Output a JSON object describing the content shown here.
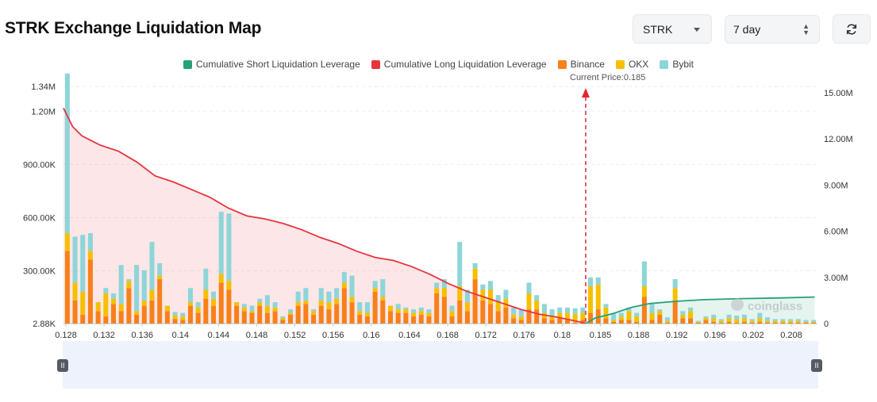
{
  "page": {
    "title": "STRK Exchange Liquidation Map",
    "coin_select": {
      "value": "STRK"
    },
    "range_select": {
      "value": "7 day"
    },
    "refresh_icon": "refresh-icon",
    "watermark": "coinglass"
  },
  "chart_data": {
    "type": "bar",
    "title": "",
    "current_price_label": "Current Price:0.185",
    "current_price": 0.185,
    "x_tick_labels": [
      "0.128",
      "0.132",
      "0.136",
      "0.14",
      "0.144",
      "0.148",
      "0.152",
      "0.156",
      "0.16",
      "0.164",
      "0.168",
      "0.172",
      "0.176",
      "0.18",
      "0.185",
      "0.188",
      "0.192",
      "0.196",
      "0.202",
      "0.208"
    ],
    "left_axis": {
      "ticks": [
        "2.88K",
        "300.00K",
        "600.00K",
        "900.00K",
        "1.20M",
        "1.34M"
      ],
      "ylim": [
        2880,
        1340000
      ]
    },
    "right_axis": {
      "ticks": [
        "0",
        "3.00M",
        "6.00M",
        "9.00M",
        "12.00M",
        "15.00M"
      ],
      "ylim": [
        0,
        15000000
      ]
    },
    "legend": [
      {
        "name": "Cumulative Short Liquidation Leverage",
        "color": "#26a17b"
      },
      {
        "name": "Cumulative Long Liquidation Leverage",
        "color": "#e8343f"
      },
      {
        "name": "Binance",
        "color": "#f7801a"
      },
      {
        "name": "OKX",
        "color": "#f5c000"
      },
      {
        "name": "Bybit",
        "color": "#8dd5d8"
      }
    ],
    "series": [
      {
        "name": "Binance",
        "values": [
          410000,
          130000,
          50000,
          360000,
          70000,
          40000,
          110000,
          70000,
          200000,
          50000,
          100000,
          130000,
          250000,
          70000,
          25000,
          20000,
          100000,
          60000,
          140000,
          100000,
          230000,
          190000,
          100000,
          70000,
          60000,
          100000,
          60000,
          70000,
          20000,
          50000,
          100000,
          110000,
          50000,
          100000,
          80000,
          110000,
          200000,
          120000,
          50000,
          40000,
          180000,
          130000,
          70000,
          60000,
          60000,
          40000,
          50000,
          40000,
          170000,
          150000,
          40000,
          130000,
          70000,
          250000,
          130000,
          110000,
          70000,
          90000,
          30000,
          20000,
          80000,
          80000,
          30000,
          20000,
          30000,
          20000,
          5000,
          20000,
          60000,
          80000,
          30000,
          10000,
          20000,
          20000,
          10000,
          150000,
          20000,
          50000,
          5000,
          130000,
          30000,
          30000,
          5000,
          20000,
          10000,
          5000,
          10000,
          5000,
          10000,
          5000,
          10000,
          5000,
          5000,
          5000,
          5000,
          5000,
          5000,
          5000
        ]
      },
      {
        "name": "OKX",
        "values": [
          100000,
          100000,
          130000,
          50000,
          50000,
          130000,
          30000,
          40000,
          40000,
          20000,
          30000,
          60000,
          20000,
          30000,
          20000,
          20000,
          20000,
          30000,
          50000,
          40000,
          50000,
          50000,
          20000,
          20000,
          10000,
          20000,
          40000,
          20000,
          10000,
          10000,
          20000,
          20000,
          20000,
          30000,
          40000,
          30000,
          30000,
          30000,
          20000,
          20000,
          20000,
          20000,
          30000,
          20000,
          20000,
          20000,
          20000,
          20000,
          30000,
          50000,
          30000,
          80000,
          50000,
          60000,
          60000,
          80000,
          50000,
          50000,
          20000,
          20000,
          90000,
          50000,
          30000,
          20000,
          30000,
          40000,
          50000,
          40000,
          150000,
          140000,
          60000,
          10000,
          20000,
          50000,
          30000,
          60000,
          40000,
          20000,
          10000,
          70000,
          20000,
          40000,
          5000,
          10000,
          20000,
          10000,
          20000,
          20000,
          20000,
          10000,
          20000,
          10000,
          10000,
          10000,
          10000,
          10000,
          5000,
          5000
        ]
      },
      {
        "name": "Bybit",
        "values": [
          900000,
          260000,
          320000,
          100000,
          0,
          30000,
          30000,
          220000,
          10000,
          260000,
          170000,
          270000,
          70000,
          0,
          20000,
          20000,
          80000,
          30000,
          120000,
          40000,
          350000,
          380000,
          0,
          20000,
          30000,
          20000,
          60000,
          30000,
          10000,
          20000,
          60000,
          70000,
          10000,
          70000,
          60000,
          60000,
          60000,
          120000,
          50000,
          60000,
          40000,
          100000,
          0,
          30000,
          10000,
          20000,
          20000,
          20000,
          30000,
          50000,
          30000,
          250000,
          70000,
          30000,
          30000,
          50000,
          40000,
          50000,
          40000,
          40000,
          60000,
          30000,
          50000,
          40000,
          30000,
          30000,
          30000,
          30000,
          50000,
          40000,
          20000,
          40000,
          20000,
          20000,
          20000,
          140000,
          50000,
          10000,
          20000,
          50000,
          20000,
          20000,
          5000,
          10000,
          20000,
          10000,
          20000,
          20000,
          20000,
          10000,
          30000,
          20000,
          10000,
          10000,
          10000,
          10000,
          10000,
          10000
        ]
      },
      {
        "name": "Cumulative Long Liquidation Leverage",
        "points": [
          [
            0.128,
            14000000
          ],
          [
            0.129,
            12800000
          ],
          [
            0.13,
            12200000
          ],
          [
            0.132,
            11600000
          ],
          [
            0.134,
            11200000
          ],
          [
            0.136,
            10500000
          ],
          [
            0.138,
            9600000
          ],
          [
            0.14,
            9200000
          ],
          [
            0.142,
            8700000
          ],
          [
            0.144,
            8200000
          ],
          [
            0.146,
            7500000
          ],
          [
            0.148,
            7000000
          ],
          [
            0.15,
            6800000
          ],
          [
            0.152,
            6500000
          ],
          [
            0.154,
            6100000
          ],
          [
            0.156,
            5600000
          ],
          [
            0.158,
            5200000
          ],
          [
            0.16,
            4700000
          ],
          [
            0.162,
            4300000
          ],
          [
            0.164,
            4100000
          ],
          [
            0.166,
            3700000
          ],
          [
            0.168,
            3200000
          ],
          [
            0.17,
            2600000
          ],
          [
            0.172,
            2100000
          ],
          [
            0.174,
            1700000
          ],
          [
            0.176,
            1300000
          ],
          [
            0.178,
            900000
          ],
          [
            0.18,
            600000
          ],
          [
            0.182,
            400000
          ],
          [
            0.184,
            150000
          ],
          [
            0.185,
            0
          ]
        ]
      },
      {
        "name": "Cumulative Short Liquidation Leverage",
        "points": [
          [
            0.185,
            0
          ],
          [
            0.186,
            350000
          ],
          [
            0.188,
            650000
          ],
          [
            0.19,
            1050000
          ],
          [
            0.192,
            1300000
          ],
          [
            0.195,
            1450000
          ],
          [
            0.198,
            1550000
          ],
          [
            0.202,
            1620000
          ],
          [
            0.206,
            1660000
          ],
          [
            0.21,
            1720000
          ]
        ]
      }
    ],
    "xlim": [
      0.128,
      0.2103
    ]
  }
}
